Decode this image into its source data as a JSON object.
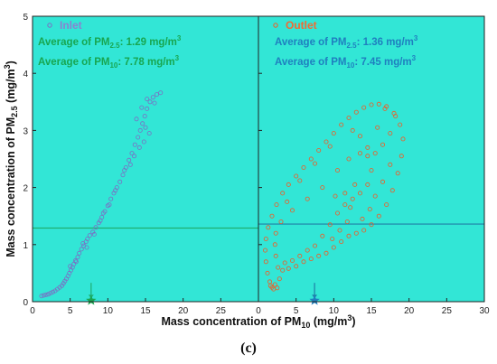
{
  "chart_data": {
    "type": "scatter",
    "caption": "(c)",
    "xlabel": "Mass concentration of PM",
    "xlabel_sub": "10",
    "xlabel_unit": " (mg/m",
    "xlabel_unit_sup": "3",
    "xlabel_unit_close": ")",
    "ylabel": "Mass concentration of PM",
    "ylabel_sub": "2.5",
    "ylabel_unit": " (mg/m",
    "ylabel_unit_sup": "3",
    "ylabel_unit_close": ")",
    "ylim": [
      0,
      5
    ],
    "y_ticks": [
      "0",
      "1",
      "2",
      "3",
      "4",
      "5"
    ],
    "grid": false,
    "colors": {
      "background": "#32e6d6",
      "inlet": "#7a6fc4",
      "outlet": "#f25a22",
      "inlet_line": "#1fae70",
      "outlet_line": "#1f7fa6",
      "text_green": "#18a650",
      "text_blue": "#1f7fbf"
    },
    "panels": [
      {
        "name": "Inlet",
        "xlim": [
          0,
          30
        ],
        "x_ticks": [
          "0",
          "5",
          "10",
          "15",
          "20",
          "25"
        ],
        "average_pm25_label": "Average of PM",
        "average_pm25_sub": "2.5",
        "average_pm25_value": ": 1.29 mg/m",
        "average_pm10_label": "Average of PM",
        "average_pm10_sub": "10",
        "average_pm10_value": ": 7.78 mg/m",
        "unit_sup": "3",
        "mean_pm25": 1.29,
        "mean_pm10": 7.78,
        "points": [
          [
            1.2,
            0.1
          ],
          [
            1.5,
            0.11
          ],
          [
            1.8,
            0.12
          ],
          [
            2.1,
            0.13
          ],
          [
            2.4,
            0.15
          ],
          [
            2.7,
            0.17
          ],
          [
            3.0,
            0.19
          ],
          [
            3.3,
            0.22
          ],
          [
            3.6,
            0.25
          ],
          [
            3.9,
            0.28
          ],
          [
            4.1,
            0.32
          ],
          [
            4.3,
            0.36
          ],
          [
            4.5,
            0.4
          ],
          [
            4.7,
            0.45
          ],
          [
            4.9,
            0.5
          ],
          [
            5.1,
            0.55
          ],
          [
            5.3,
            0.6
          ],
          [
            5.5,
            0.66
          ],
          [
            5.7,
            0.72
          ],
          [
            6.0,
            0.78
          ],
          [
            6.2,
            0.85
          ],
          [
            6.5,
            0.92
          ],
          [
            6.8,
            0.98
          ],
          [
            7.1,
            1.05
          ],
          [
            7.3,
            1.1
          ],
          [
            7.6,
            1.16
          ],
          [
            8.0,
            1.22
          ],
          [
            8.4,
            1.3
          ],
          [
            8.8,
            1.38
          ],
          [
            9.2,
            1.48
          ],
          [
            9.6,
            1.58
          ],
          [
            10.0,
            1.68
          ],
          [
            10.4,
            1.8
          ],
          [
            10.8,
            1.9
          ],
          [
            11.2,
            2.0
          ],
          [
            11.6,
            2.1
          ],
          [
            12.0,
            2.22
          ],
          [
            12.4,
            2.35
          ],
          [
            12.8,
            2.48
          ],
          [
            13.2,
            2.6
          ],
          [
            13.6,
            2.75
          ],
          [
            14.0,
            2.88
          ],
          [
            14.3,
            3.0
          ],
          [
            14.6,
            3.12
          ],
          [
            14.9,
            3.25
          ],
          [
            15.2,
            3.38
          ],
          [
            15.6,
            3.5
          ],
          [
            16.0,
            3.58
          ],
          [
            16.5,
            3.63
          ],
          [
            17.0,
            3.66
          ],
          [
            13.0,
            2.4
          ],
          [
            13.5,
            2.55
          ],
          [
            14.2,
            2.7
          ],
          [
            14.8,
            2.8
          ],
          [
            15.5,
            2.95
          ],
          [
            15.0,
            3.05
          ],
          [
            13.8,
            3.2
          ],
          [
            14.5,
            3.4
          ],
          [
            15.2,
            3.55
          ],
          [
            16.2,
            3.48
          ],
          [
            6.7,
            1.02
          ],
          [
            7.2,
            0.95
          ],
          [
            5.8,
            0.7
          ],
          [
            5.0,
            0.62
          ],
          [
            9.0,
            1.42
          ],
          [
            10.2,
            1.7
          ],
          [
            11.0,
            1.95
          ],
          [
            12.2,
            2.3
          ],
          [
            8.2,
            1.18
          ],
          [
            9.4,
            1.55
          ]
        ]
      },
      {
        "name": "Outlet",
        "xlim": [
          0,
          30
        ],
        "x_ticks": [
          "0",
          "5",
          "10",
          "15",
          "20",
          "25",
          "30"
        ],
        "average_pm25_label": "Average of PM",
        "average_pm25_sub": "2.5",
        "average_pm25_value": ": 1.36 mg/m",
        "average_pm10_label": "Average of PM",
        "average_pm10_sub": "10",
        "average_pm10_value": ": 7.45 mg/m",
        "unit_sup": "3",
        "mean_pm25": 1.36,
        "mean_pm10": 7.45,
        "points": [
          [
            1.8,
            0.25
          ],
          [
            2.0,
            0.22
          ],
          [
            2.5,
            0.24
          ],
          [
            1.5,
            0.35
          ],
          [
            1.2,
            0.5
          ],
          [
            1.0,
            0.7
          ],
          [
            0.9,
            0.9
          ],
          [
            1.0,
            1.1
          ],
          [
            1.3,
            1.3
          ],
          [
            1.8,
            1.5
          ],
          [
            2.4,
            1.7
          ],
          [
            3.2,
            1.9
          ],
          [
            4.0,
            2.05
          ],
          [
            5.0,
            2.2
          ],
          [
            6.0,
            2.35
          ],
          [
            7.0,
            2.5
          ],
          [
            8.0,
            2.65
          ],
          [
            9.0,
            2.8
          ],
          [
            10.0,
            2.95
          ],
          [
            11.0,
            3.1
          ],
          [
            12.0,
            3.22
          ],
          [
            13.0,
            3.32
          ],
          [
            14.0,
            3.4
          ],
          [
            15.0,
            3.45
          ],
          [
            16.0,
            3.46
          ],
          [
            17.0,
            3.42
          ],
          [
            18.0,
            3.3
          ],
          [
            18.8,
            3.1
          ],
          [
            19.2,
            2.85
          ],
          [
            19.0,
            2.55
          ],
          [
            18.5,
            2.25
          ],
          [
            17.8,
            1.95
          ],
          [
            17.0,
            1.7
          ],
          [
            16.0,
            1.5
          ],
          [
            15.0,
            1.35
          ],
          [
            14.0,
            1.25
          ],
          [
            13.0,
            1.2
          ],
          [
            12.0,
            1.15
          ],
          [
            11.0,
            1.05
          ],
          [
            10.0,
            0.95
          ],
          [
            9.0,
            0.85
          ],
          [
            8.0,
            0.8
          ],
          [
            7.0,
            0.75
          ],
          [
            6.0,
            0.7
          ],
          [
            5.0,
            0.62
          ],
          [
            4.0,
            0.58
          ],
          [
            3.2,
            0.55
          ],
          [
            2.6,
            0.6
          ],
          [
            2.3,
            0.8
          ],
          [
            2.2,
            1.0
          ],
          [
            2.3,
            1.2
          ],
          [
            3.0,
            1.4
          ],
          [
            4.5,
            1.6
          ],
          [
            6.5,
            1.8
          ],
          [
            8.5,
            2.0
          ],
          [
            10.5,
            2.3
          ],
          [
            12.0,
            2.5
          ],
          [
            13.5,
            2.6
          ],
          [
            14.5,
            2.55
          ],
          [
            15.0,
            2.3
          ],
          [
            14.5,
            2.05
          ],
          [
            13.5,
            1.9
          ],
          [
            12.5,
            1.8
          ],
          [
            11.5,
            1.7
          ],
          [
            10.5,
            1.55
          ],
          [
            9.5,
            1.35
          ],
          [
            8.5,
            1.15
          ],
          [
            7.5,
            0.98
          ],
          [
            6.5,
            0.9
          ],
          [
            5.5,
            0.8
          ],
          [
            4.5,
            0.72
          ],
          [
            3.5,
            0.68
          ],
          [
            2.8,
            0.4
          ],
          [
            2.2,
            0.3
          ],
          [
            1.6,
            0.28
          ],
          [
            12.5,
            3.0
          ],
          [
            13.5,
            2.9
          ],
          [
            14.5,
            2.7
          ],
          [
            15.5,
            2.6
          ],
          [
            16.5,
            2.75
          ],
          [
            17.5,
            2.95
          ],
          [
            18.2,
            3.25
          ],
          [
            16.8,
            3.38
          ],
          [
            15.8,
            3.05
          ],
          [
            11.5,
            1.9
          ],
          [
            12.2,
            1.65
          ],
          [
            13.8,
            1.45
          ],
          [
            14.8,
            1.62
          ],
          [
            10.8,
            1.25
          ],
          [
            11.8,
            1.4
          ],
          [
            9.8,
            1.1
          ],
          [
            10.2,
            1.85
          ],
          [
            12.8,
            2.05
          ],
          [
            15.5,
            1.85
          ],
          [
            16.5,
            2.1
          ],
          [
            17.5,
            2.4
          ],
          [
            3.8,
            1.75
          ],
          [
            5.5,
            2.12
          ],
          [
            7.5,
            2.42
          ],
          [
            9.5,
            2.72
          ]
        ]
      }
    ]
  }
}
